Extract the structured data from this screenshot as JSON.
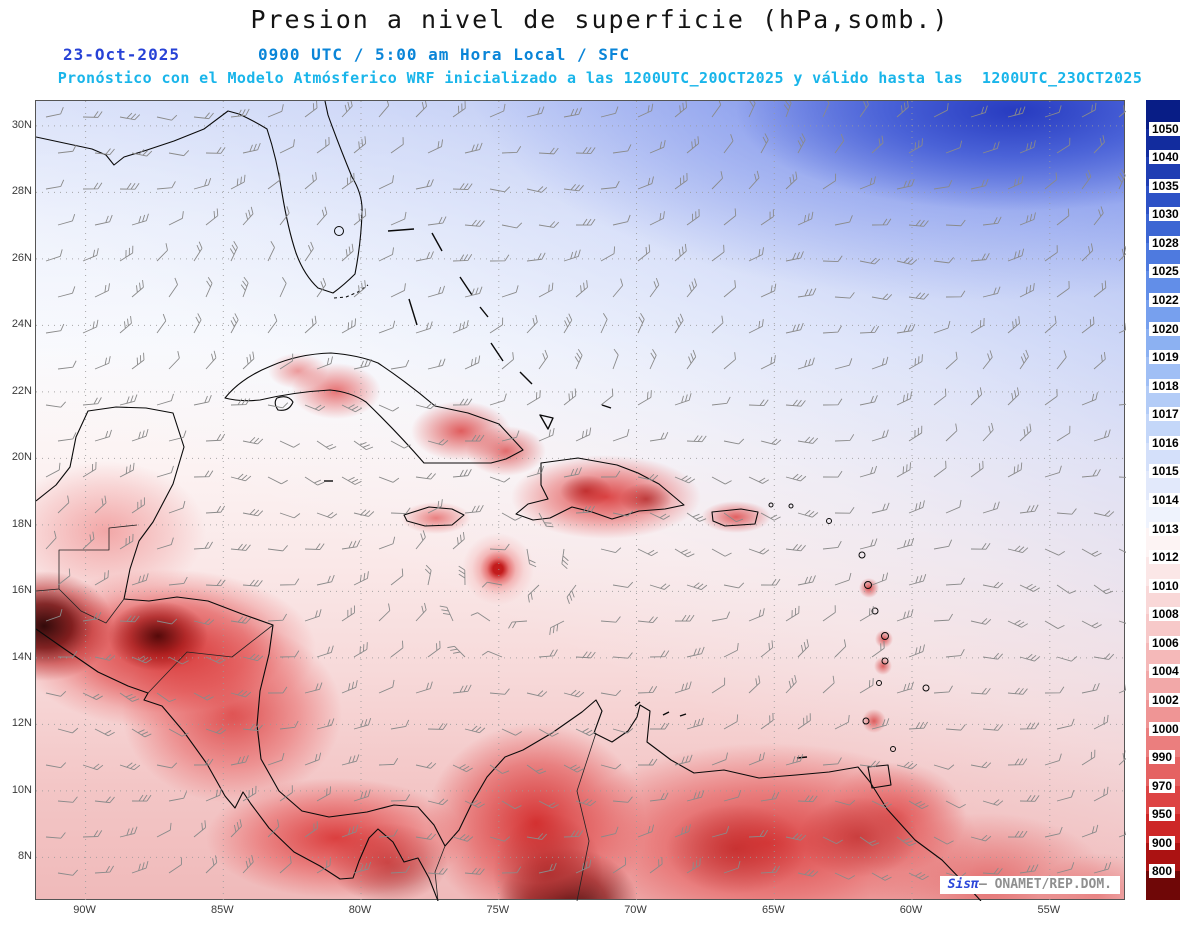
{
  "title": "Presion a nivel de superficie (hPa,somb.)",
  "header": {
    "date": "23-Oct-2025",
    "time_line": "0900 UTC / 5:00 am Hora Local / SFC",
    "forecast_line": "Pronóstico con el Modelo Atmósferico WRF inicializado a las 1200UTC_20OCT2025 y válido hasta las  1200UTC_23OCT2025"
  },
  "map": {
    "lat_ticks": [
      "30N",
      "28N",
      "26N",
      "24N",
      "22N",
      "20N",
      "18N",
      "16N",
      "14N",
      "12N",
      "10N",
      "8N"
    ],
    "lon_ticks": [
      "90W",
      "85W",
      "80W",
      "75W",
      "70W",
      "65W",
      "60W",
      "55W"
    ]
  },
  "colorbar": {
    "unit": "hPa",
    "labels": [
      "1050",
      "1040",
      "1035",
      "1030",
      "1028",
      "1025",
      "1022",
      "1020",
      "1019",
      "1018",
      "1017",
      "1016",
      "1015",
      "1014",
      "1013",
      "1012",
      "1010",
      "1008",
      "1006",
      "1004",
      "1002",
      "1000",
      "990",
      "970",
      "950",
      "900",
      "800"
    ],
    "colors": [
      "#081d86",
      "#122c9e",
      "#1f3eb3",
      "#2d52c6",
      "#3c66d3",
      "#4e7adf",
      "#628ee8",
      "#77a0ee",
      "#8cb1f2",
      "#a0bff5",
      "#b3ccf7",
      "#c4d7f9",
      "#d4e0fa",
      "#e2e9fb",
      "#eff3fd",
      "#fdf4f4",
      "#fbe7e7",
      "#f9d8d8",
      "#f7c9c9",
      "#f5b9b9",
      "#f2a8a8",
      "#ef9595",
      "#eb7e7e",
      "#e56262",
      "#dd4444",
      "#cd2727",
      "#ab1212",
      "#6f0707"
    ]
  },
  "watermark": {
    "brand": "Sisπ",
    "separator": "— ",
    "credit": "ONAMET/REP.DOM."
  },
  "colors": {
    "title": "#141414",
    "date": "#2742d6",
    "time": "#0a85d8",
    "forecast": "#19b5ea",
    "brand": "#2b46d9",
    "credit": "#8f8f8f",
    "barb": "#8a8a8a"
  }
}
